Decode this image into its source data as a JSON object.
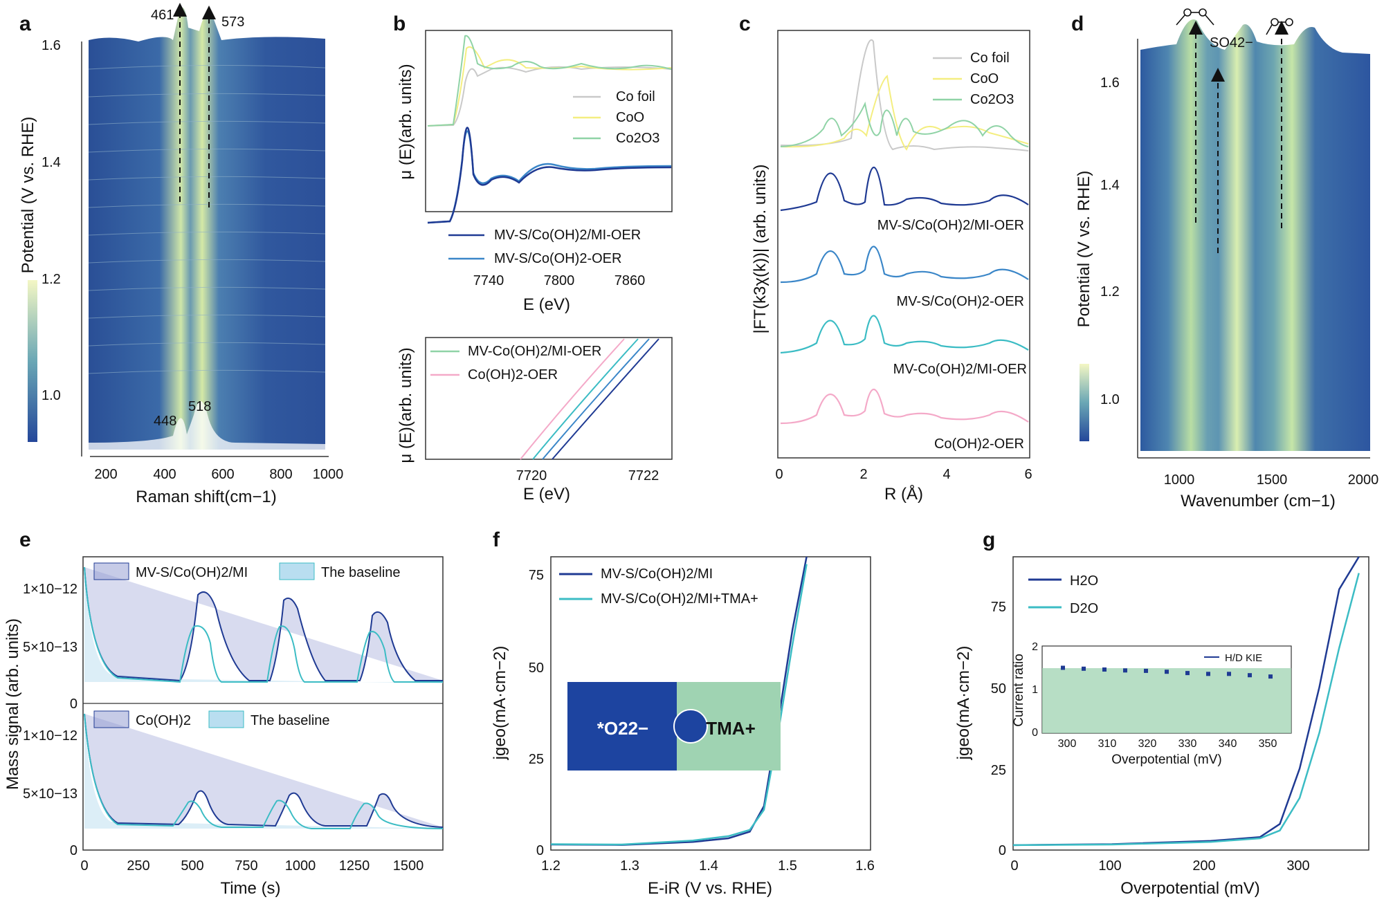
{
  "colors": {
    "navy": "#1f3a93",
    "blue": "#3a86c8",
    "teal": "#3bbcc4",
    "gray": "#bdbdbd",
    "yellow": "#f6ef7f",
    "green": "#8fd3a6",
    "pink": "#f4a9c8",
    "heatLow": "#2d58a0",
    "heatHigh": "#f4f7c4",
    "boxBlue": "#1d44a0",
    "boxGreen": "#9fd3b2"
  },
  "panels": {
    "a": {
      "label": "a",
      "ylabel": "Potential (V vs. RHE)",
      "xlabel": "Raman shift(cm−1)",
      "xticks": [
        "200",
        "400",
        "600",
        "800",
        "1000"
      ],
      "yticks": [
        "1.0",
        "1.2",
        "1.4",
        "1.6"
      ],
      "peaks_top": [
        "461",
        "573"
      ],
      "peaks_bottom": [
        "448",
        "518"
      ]
    },
    "b": {
      "label": "b",
      "ylabel": "μ (E)(arb. units)",
      "xlabel": "E (eV)",
      "xticks": [
        "7740",
        "7800",
        "7860"
      ],
      "legend_top": [
        "Co foil",
        "CoO",
        "Co2O3"
      ],
      "legend_mid": [
        "MV-S/Co(OH)2/MI-OER",
        "MV-S/Co(OH)2-OER"
      ],
      "ylabel2": "μ (E)(arb. units)",
      "xlabel2": "E (eV)",
      "xticks2": [
        "7720",
        "7722"
      ],
      "legend_bot": [
        "MV-Co(OH)2/MI-OER",
        "Co(OH)2-OER"
      ]
    },
    "c": {
      "label": "c",
      "ylabel": "|FT(k3χ(k))| (arb. units)",
      "xlabel": "R (Å)",
      "xticks": [
        "0",
        "2",
        "4",
        "6"
      ],
      "legend": [
        "Co foil",
        "CoO",
        "Co2O3"
      ],
      "curve_labels": [
        "MV-S/Co(OH)2/MI-OER",
        "MV-S/Co(OH)2-OER",
        "MV-Co(OH)2/MI-OER",
        "Co(OH)2-OER"
      ]
    },
    "d": {
      "label": "d",
      "ylabel": "Potential (V vs. RHE)",
      "xlabel": "Wavenumber (cm−1)",
      "xticks": [
        "1000",
        "1500",
        "2000"
      ],
      "yticks": [
        "1.0",
        "1.2",
        "1.4",
        "1.6"
      ],
      "annot": "SO42−"
    },
    "e": {
      "label": "e",
      "ylabel": "Mass signal (arb. units)",
      "xlabel": "Time (s)",
      "xticks": [
        "0",
        "250",
        "500",
        "750",
        "1000",
        "1250",
        "1500"
      ],
      "yticks_top": [
        "0",
        "5×10−13",
        "1×10−12"
      ],
      "legend_top": [
        "MV-S/Co(OH)2/MI",
        "The baseline"
      ],
      "legend_bot": [
        "Co(OH)2",
        "The baseline"
      ]
    },
    "f": {
      "label": "f",
      "ylabel": "jgeo(mA·cm−2)",
      "xlabel": "E-iR (V vs. RHE)",
      "xticks": [
        "1.2",
        "1.3",
        "1.4",
        "1.5",
        "1.6"
      ],
      "yticks": [
        "0",
        "25",
        "50",
        "75"
      ],
      "legend": [
        "MV-S/Co(OH)2/MI",
        "MV-S/Co(OH)2/MI+TMA+"
      ],
      "box_left": "*O22−",
      "box_right": "TMA+"
    },
    "g": {
      "label": "g",
      "ylabel": "jgeo(mA·cm−2)",
      "xlabel": "Overpotential (mV)",
      "xticks": [
        "0",
        "100",
        "200",
        "300"
      ],
      "yticks": [
        "0",
        "25",
        "50",
        "75"
      ],
      "legend": [
        "H2O",
        "D2O"
      ],
      "inset": {
        "ylabel": "Current ratio",
        "xlabel": "Overpotential (mV)",
        "xticks": [
          "300",
          "310",
          "320",
          "330",
          "340",
          "350"
        ],
        "yticks": [
          "0",
          "1",
          "2"
        ],
        "legend": "H/D KIE"
      }
    }
  },
  "chart_data": [
    {
      "type": "heatmap",
      "panel": "a",
      "x_range": [
        130,
        1000
      ],
      "y_range": [
        0.9,
        1.65
      ],
      "peaks_x": [
        448,
        518,
        461,
        573
      ]
    },
    {
      "type": "line",
      "panel": "b",
      "x_range": [
        7710,
        7885
      ]
    },
    {
      "type": "line",
      "panel": "c",
      "x_range": [
        0,
        6
      ]
    },
    {
      "type": "heatmap",
      "panel": "d",
      "x_range": [
        730,
        2000
      ],
      "y_range": [
        0.9,
        1.65
      ],
      "bands_x": [
        1050,
        1300,
        1550
      ]
    },
    {
      "type": "line",
      "panel": "e",
      "x_range": [
        0,
        1650
      ],
      "peaks_top": [
        530,
        950,
        1350
      ],
      "peaks_bottom": [
        550,
        960,
        1370
      ]
    },
    {
      "type": "line",
      "panel": "f",
      "x": [
        1.2,
        1.3,
        1.4,
        1.45,
        1.48,
        1.5,
        1.52,
        1.54,
        1.56
      ],
      "series": [
        {
          "name": "MV-S/Co(OH)2/MI",
          "values": [
            1.5,
            1.4,
            2.2,
            3.2,
            5,
            12,
            35,
            60,
            80
          ]
        },
        {
          "name": "MV-S/Co(OH)2/MI+TMA+",
          "values": [
            1.6,
            1.5,
            2.6,
            3.8,
            5.5,
            11,
            32,
            56,
            78
          ]
        }
      ],
      "ylim": [
        0,
        80
      ],
      "xlim": [
        1.2,
        1.65
      ]
    },
    {
      "type": "line",
      "panel": "g",
      "x": [
        0,
        100,
        200,
        250,
        270,
        290,
        310,
        330,
        350
      ],
      "series": [
        {
          "name": "H2O",
          "values": [
            1.5,
            1.8,
            2.8,
            4,
            8,
            25,
            50,
            80,
            95
          ]
        },
        {
          "name": "D2O",
          "values": [
            1.5,
            1.7,
            2.5,
            3.6,
            6,
            16,
            36,
            62,
            85
          ]
        }
      ],
      "ylim": [
        0,
        90
      ],
      "xlim": [
        0,
        360
      ]
    },
    {
      "type": "scatter",
      "panel": "g-inset",
      "x": [
        300,
        305,
        310,
        315,
        320,
        325,
        330,
        335,
        340,
        345,
        350
      ],
      "values": [
        1.5,
        1.48,
        1.46,
        1.44,
        1.43,
        1.41,
        1.38,
        1.36,
        1.36,
        1.33,
        1.3
      ],
      "ylim": [
        0,
        2
      ],
      "xlim": [
        295,
        355
      ]
    }
  ]
}
